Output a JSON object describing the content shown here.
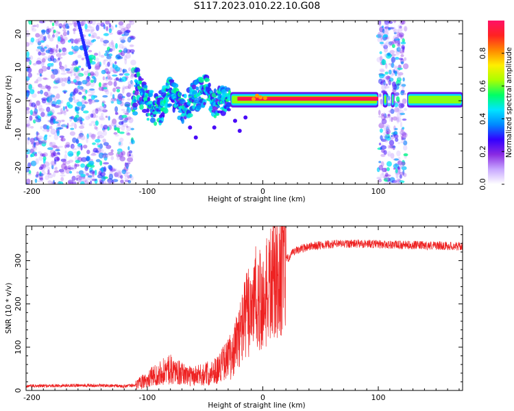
{
  "figure_title": "S117.2023.010.22.10.G08",
  "chart_data": [
    {
      "type": "heatmap",
      "title": "",
      "xlabel": "Height of straight line (km)",
      "ylabel": "Frequency (Hz)",
      "xlim": [
        -205,
        173
      ],
      "ylim": [
        -25,
        24
      ],
      "xticks": [
        "-200",
        "-100",
        "0",
        "100"
      ],
      "xtick_values": [
        -200,
        -100,
        0,
        100
      ],
      "yticks": [
        "-20",
        "-10",
        "0",
        "10",
        "20"
      ],
      "ytick_values": [
        -20,
        -10,
        0,
        10,
        20
      ],
      "colorbar": {
        "label": "Normalized spectral amplitude",
        "range": [
          0,
          1
        ],
        "ticks": [
          "0.0",
          "0.2",
          "0.4",
          "0.6",
          "0.8"
        ],
        "tick_values": [
          0.0,
          0.2,
          0.4,
          0.6,
          0.8
        ],
        "colors": [
          "#ffffff",
          "#c8a8ff",
          "#8a2be2",
          "#3300ff",
          "#0088ff",
          "#00e5ff",
          "#00ff66",
          "#aaff00",
          "#ffee00",
          "#ff8800",
          "#ff2222",
          "#ff1166"
        ]
      },
      "features": {
        "noise_regions_km": [
          [
            -205,
            -112
          ],
          [
            100,
            124
          ]
        ],
        "signal_band_center_hz": [
          {
            "x": -110,
            "y": 6
          },
          {
            "x": -100,
            "y": -1
          },
          {
            "x": -90,
            "y": -3
          },
          {
            "x": -80,
            "y": 3
          },
          {
            "x": -70,
            "y": -3
          },
          {
            "x": -60,
            "y": 1
          },
          {
            "x": -50,
            "y": 3
          },
          {
            "x": -40,
            "y": -1
          },
          {
            "x": -28,
            "y": 0.5
          },
          {
            "x": 0,
            "y": 1
          },
          {
            "x": 100,
            "y": 0.5
          },
          {
            "x": 173,
            "y": 0
          }
        ]
      }
    },
    {
      "type": "line",
      "title": "",
      "xlabel": "Height of straight line (km)",
      "ylabel": "SNR (10 * v/v)",
      "xlim": [
        -205,
        173
      ],
      "ylim": [
        0,
        380
      ],
      "xticks": [
        "-200",
        "-100",
        "0",
        "100"
      ],
      "xtick_values": [
        -200,
        -100,
        0,
        100
      ],
      "yticks": [
        "0",
        "100",
        "200",
        "300"
      ],
      "ytick_values": [
        0,
        100,
        200,
        300
      ],
      "color": "#ee2222",
      "series": [
        {
          "x": [
            -205,
            -180,
            -160,
            -140,
            -120,
            -110,
            -100,
            -90,
            -80,
            -70,
            -60,
            -50,
            -40,
            -30,
            -25,
            -20,
            -15,
            -10,
            -5,
            0,
            5,
            10,
            15,
            20,
            25,
            30,
            40,
            50,
            60,
            70,
            80,
            90,
            100,
            110,
            120,
            130,
            140,
            150,
            160,
            173
          ],
          "y": [
            10,
            11,
            12,
            11,
            10,
            12,
            25,
            42,
            50,
            38,
            32,
            38,
            48,
            75,
            95,
            130,
            170,
            205,
            215,
            200,
            235,
            260,
            280,
            300,
            315,
            325,
            333,
            336,
            338,
            339,
            339,
            339,
            338,
            337,
            336,
            336,
            335,
            335,
            334,
            333
          ]
        }
      ]
    }
  ]
}
